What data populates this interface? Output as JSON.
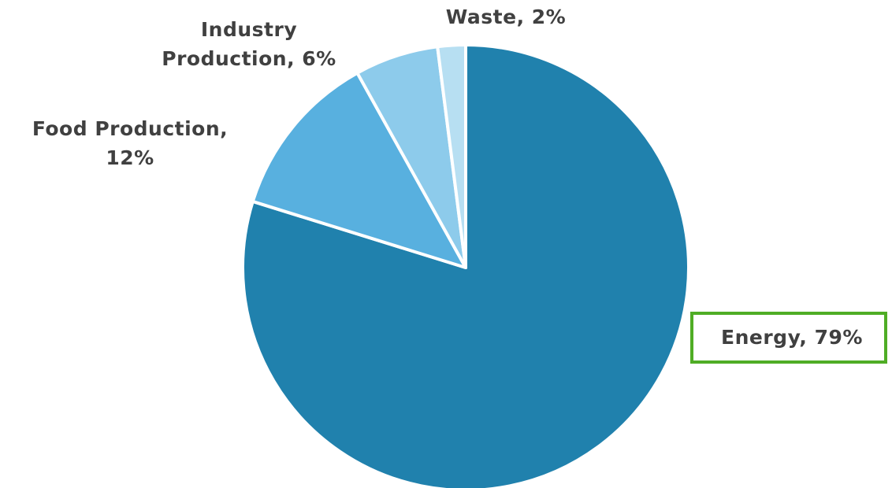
{
  "chart_data": {
    "type": "pie",
    "categories": [
      "Energy",
      "Food Production",
      "Industry Production",
      "Waste"
    ],
    "values": [
      79,
      12,
      6,
      2
    ],
    "colors": [
      "#2081ad",
      "#58b0df",
      "#8dcbeb",
      "#b7dff2"
    ],
    "data_labels": {
      "energy": [
        "Energy, 79%"
      ],
      "food": [
        "Food Production,",
        "12%"
      ],
      "industry": [
        "Industry",
        "Production, 6%"
      ],
      "waste": [
        "Waste, 2%"
      ]
    },
    "highlighted_label": "Energy",
    "highlight_color": "#4fad25",
    "legend": false
  }
}
